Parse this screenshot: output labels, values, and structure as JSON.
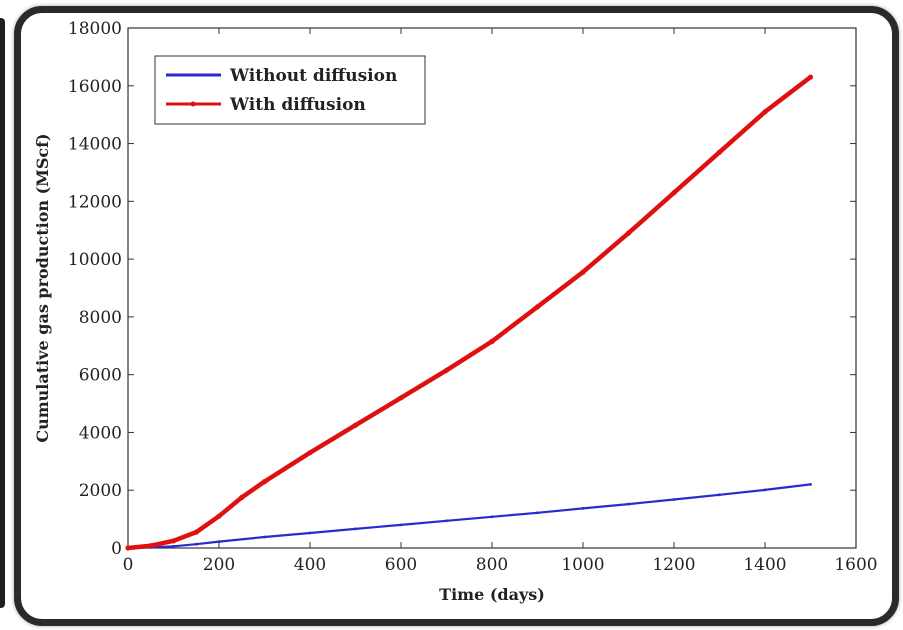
{
  "chart_data": {
    "type": "line",
    "title": "",
    "xlabel": "Time (days)",
    "ylabel": "Cumulative gas production (MScf)",
    "xlim": [
      0,
      1600
    ],
    "ylim": [
      0,
      18000
    ],
    "xticks": [
      0,
      200,
      400,
      600,
      800,
      1000,
      1200,
      1400,
      1600
    ],
    "yticks": [
      0,
      2000,
      4000,
      6000,
      8000,
      10000,
      12000,
      14000,
      16000,
      18000
    ],
    "grid": false,
    "legend_position": "top-left",
    "series": [
      {
        "name": "Without diffusion",
        "color": "#2a2ad0",
        "x": [
          0,
          50,
          100,
          150,
          200,
          300,
          400,
          500,
          600,
          700,
          800,
          900,
          1000,
          1100,
          1200,
          1300,
          1400,
          1500
        ],
        "y": [
          0,
          20,
          60,
          130,
          220,
          380,
          520,
          660,
          800,
          940,
          1080,
          1220,
          1370,
          1520,
          1680,
          1840,
          2010,
          2200
        ]
      },
      {
        "name": "With diffusion",
        "color": "#e01010",
        "x": [
          0,
          50,
          100,
          150,
          200,
          250,
          300,
          400,
          500,
          600,
          700,
          800,
          900,
          1000,
          1100,
          1200,
          1300,
          1400,
          1500
        ],
        "y": [
          0,
          80,
          250,
          550,
          1100,
          1750,
          2300,
          3300,
          4250,
          5200,
          6150,
          7150,
          8350,
          9550,
          10900,
          12300,
          13700,
          15100,
          16300
        ]
      }
    ]
  }
}
